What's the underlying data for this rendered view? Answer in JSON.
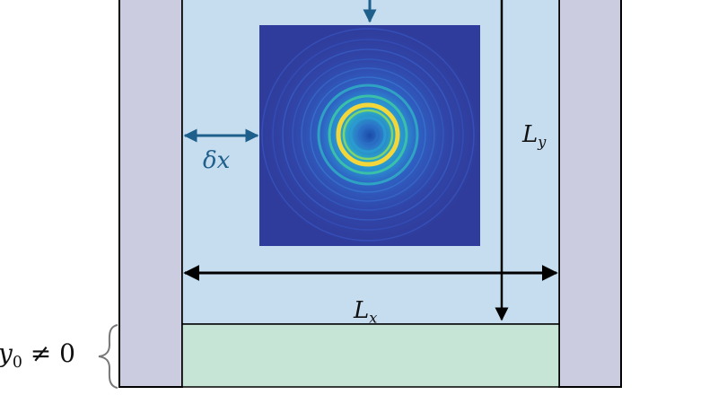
{
  "labels": {
    "lx_main": "L",
    "lx_sub": "x",
    "ly_main": "L",
    "ly_sub": "y",
    "dx_delta": "δ",
    "dx_var": "x",
    "y0_var": "y",
    "y0_sub": "0",
    "y0_rel": " ≠ 0"
  },
  "colors": {
    "side_wall": "#cccce0",
    "domain": "#c6ddef",
    "bottom_region": "#c7e5d7",
    "pattern_background": "#2f3c9b",
    "ring": "#f2d63a",
    "arrow_blue": "#1f5f8b",
    "outline": "#000000"
  },
  "icons": {
    "brace": "curly-brace-icon"
  }
}
